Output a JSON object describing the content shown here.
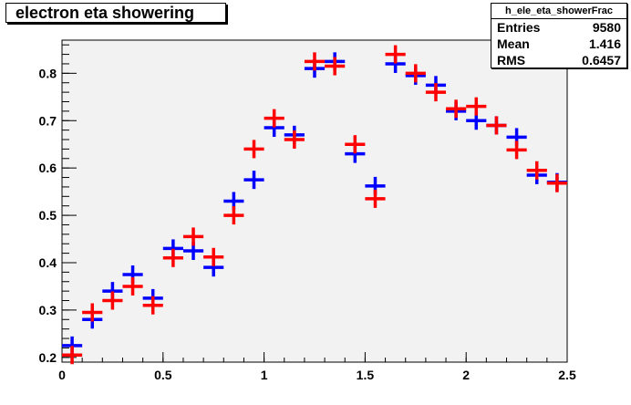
{
  "stats_box": {
    "name": "h_ele_eta_showerFrac",
    "rows": [
      {
        "label": "Entries",
        "value": "9580"
      },
      {
        "label": "Mean",
        "value": "1.416"
      },
      {
        "label": "RMS",
        "value": "0.6457"
      }
    ]
  },
  "chart_data": {
    "type": "scatter",
    "title": "electron eta showering",
    "xlabel": "",
    "ylabel": "",
    "xlim": [
      0,
      2.5
    ],
    "ylim": [
      0.19,
      0.87
    ],
    "x_ticks": [
      0,
      0.5,
      1,
      1.5,
      2,
      2.5
    ],
    "x_tick_labels": [
      "0",
      "0.5",
      "1",
      "1.5",
      "2",
      "2.5"
    ],
    "y_ticks": [
      0.2,
      0.3,
      0.4,
      0.5,
      0.6,
      0.7,
      0.8
    ],
    "y_tick_labels": [
      "0.2",
      "0.3",
      "0.4",
      "0.5",
      "0.6",
      "0.7",
      "0.8"
    ],
    "bin_width": 0.1,
    "background_color": "#f2f2f2",
    "series": [
      {
        "color": "#0000ff",
        "x": [
          0.05,
          0.15,
          0.25,
          0.35,
          0.45,
          0.55,
          0.65,
          0.75,
          0.85,
          0.95,
          1.05,
          1.15,
          1.25,
          1.35,
          1.45,
          1.55,
          1.65,
          1.75,
          1.85,
          1.95,
          2.05,
          2.15,
          2.25,
          2.35,
          2.45
        ],
        "y": [
          0.225,
          0.28,
          0.34,
          0.375,
          0.325,
          0.43,
          0.425,
          0.39,
          0.53,
          0.575,
          0.685,
          0.67,
          0.81,
          0.825,
          0.63,
          0.562,
          0.82,
          0.795,
          0.775,
          0.72,
          0.7,
          0.69,
          0.665,
          0.585,
          0.57
        ]
      },
      {
        "color": "#ff0000",
        "x": [
          0.05,
          0.15,
          0.25,
          0.35,
          0.45,
          0.55,
          0.65,
          0.75,
          0.85,
          0.95,
          1.05,
          1.15,
          1.25,
          1.35,
          1.45,
          1.55,
          1.65,
          1.75,
          1.85,
          1.95,
          2.05,
          2.15,
          2.25,
          2.35,
          2.45
        ],
        "y": [
          0.205,
          0.295,
          0.32,
          0.35,
          0.31,
          0.41,
          0.455,
          0.412,
          0.5,
          0.64,
          0.705,
          0.66,
          0.825,
          0.815,
          0.65,
          0.535,
          0.84,
          0.8,
          0.76,
          0.725,
          0.73,
          0.69,
          0.638,
          0.595,
          0.568
        ]
      }
    ]
  }
}
